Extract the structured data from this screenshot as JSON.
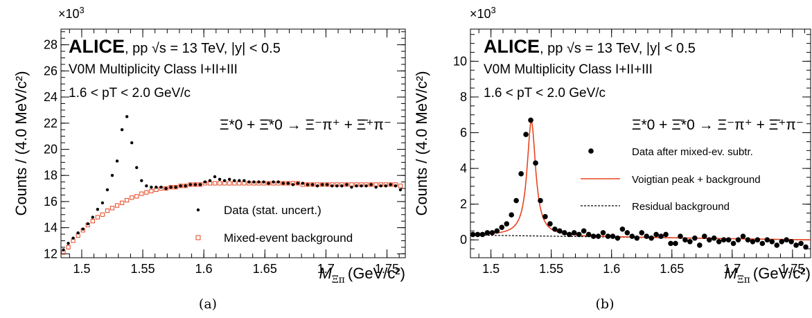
{
  "chart_data": [
    {
      "type": "scatter",
      "panel_label": "(a)",
      "y_multiplier": "×10",
      "y_multiplier_exp": "3",
      "ylabel": "Counts / (4.0 MeV/c²)",
      "xlabel": "M",
      "xlabel_sub": "Ξπ",
      "xlabel_unit": "(GeV/c²)",
      "experiment": "ALICE",
      "header_rest": ", pp √s = 13 TeV, |y| < 0.5",
      "line2": "V0M Multiplicity Class I+II+III",
      "line3": "1.6 < pT < 2.0 GeV/c",
      "decay": "Ξ*0 + Ξ̄*0 → Ξ⁻π⁺ + Ξ̄⁺π⁻",
      "xlim": [
        1.483,
        1.765
      ],
      "ylim": [
        11.7,
        29.2
      ],
      "xticks": [
        "1.5",
        "1.55",
        "1.6",
        "1.65",
        "1.7",
        "1.75"
      ],
      "yticks": [
        "12",
        "14",
        "16",
        "18",
        "20",
        "22",
        "24",
        "26",
        "28"
      ],
      "legend": [
        "Data (stat. uncert.)",
        "Mixed-event background"
      ],
      "colors": {
        "data": "#000000",
        "mixed": "#e8431e"
      },
      "x": [
        1.485,
        1.489,
        1.493,
        1.497,
        1.501,
        1.505,
        1.509,
        1.513,
        1.517,
        1.521,
        1.525,
        1.529,
        1.533,
        1.537,
        1.541,
        1.545,
        1.549,
        1.553,
        1.557,
        1.561,
        1.565,
        1.569,
        1.573,
        1.577,
        1.581,
        1.585,
        1.589,
        1.593,
        1.597,
        1.601,
        1.605,
        1.609,
        1.613,
        1.617,
        1.621,
        1.625,
        1.629,
        1.633,
        1.637,
        1.641,
        1.645,
        1.649,
        1.653,
        1.657,
        1.661,
        1.665,
        1.669,
        1.673,
        1.677,
        1.681,
        1.685,
        1.689,
        1.693,
        1.697,
        1.701,
        1.705,
        1.709,
        1.713,
        1.717,
        1.721,
        1.725,
        1.729,
        1.733,
        1.737,
        1.741,
        1.745,
        1.749,
        1.753,
        1.757,
        1.761
      ],
      "series": [
        {
          "name": "Data (stat. uncert.)",
          "values": [
            12.3,
            12.8,
            13.2,
            13.6,
            13.9,
            14.3,
            14.8,
            15.4,
            15.9,
            16.9,
            18.0,
            19.1,
            21.5,
            22.5,
            20.5,
            18.6,
            17.6,
            17.2,
            17.1,
            17.1,
            17.1,
            17.0,
            17.1,
            17.1,
            17.2,
            17.2,
            17.3,
            17.3,
            17.3,
            17.5,
            17.6,
            17.9,
            17.7,
            17.6,
            17.7,
            17.6,
            17.6,
            17.6,
            17.5,
            17.5,
            17.5,
            17.5,
            17.4,
            17.5,
            17.5,
            17.4,
            17.4,
            17.3,
            17.4,
            17.4,
            17.3,
            17.3,
            17.2,
            17.3,
            17.3,
            17.2,
            17.2,
            17.2,
            17.3,
            17.1,
            17.2,
            17.2,
            17.2,
            17.3,
            17.1,
            17.2,
            17.2,
            17.3,
            17.2,
            16.9
          ]
        },
        {
          "name": "Mixed-event background",
          "values": [
            12.1,
            12.5,
            13.0,
            13.4,
            13.8,
            14.2,
            14.5,
            14.8,
            15.0,
            15.3,
            15.5,
            15.7,
            15.9,
            16.1,
            16.3,
            16.4,
            16.6,
            16.7,
            16.8,
            16.9,
            17.0,
            17.0,
            17.1,
            17.1,
            17.2,
            17.2,
            17.3,
            17.3,
            17.3,
            17.4,
            17.4,
            17.4,
            17.4,
            17.4,
            17.4,
            17.4,
            17.4,
            17.4,
            17.4,
            17.4,
            17.4,
            17.4,
            17.4,
            17.4,
            17.4,
            17.4,
            17.4,
            17.4,
            17.4,
            17.3,
            17.3,
            17.3,
            17.3,
            17.3,
            17.3,
            17.3,
            17.3,
            17.3,
            17.3,
            17.3,
            17.3,
            17.3,
            17.3,
            17.3,
            17.3,
            17.3,
            17.3,
            17.3,
            17.3,
            17.2
          ]
        }
      ]
    },
    {
      "type": "scatter",
      "panel_label": "(b)",
      "y_multiplier": "×10",
      "y_multiplier_exp": "3",
      "ylabel": "Counts / (4.0 MeV/c²)",
      "xlabel": "M",
      "xlabel_sub": "Ξπ",
      "xlabel_unit": "(GeV/c²)",
      "experiment": "ALICE",
      "header_rest": ", pp √s = 13 TeV, |y| < 0.5",
      "line2": "V0M Multiplicity Class I+II+III",
      "line3": "1.6 < pT < 2.0 GeV/c",
      "decay": "Ξ*0 + Ξ̄*0 → Ξ⁻π⁺ + Ξ̄⁺π⁻",
      "xlim": [
        1.483,
        1.765
      ],
      "ylim": [
        -1.0,
        11.8
      ],
      "xticks": [
        "1.5",
        "1.55",
        "1.6",
        "1.65",
        "1.7",
        "1.75"
      ],
      "yticks": [
        "0",
        "2",
        "4",
        "6",
        "8",
        "10"
      ],
      "legend": [
        "Data after mixed-ev. subtr.",
        "Voigtian peak + background",
        "Residual background"
      ],
      "colors": {
        "data": "#000000",
        "fit": "#e8431e",
        "residual": "#000000"
      },
      "x": [
        1.485,
        1.489,
        1.493,
        1.497,
        1.501,
        1.505,
        1.509,
        1.513,
        1.517,
        1.521,
        1.525,
        1.529,
        1.533,
        1.537,
        1.541,
        1.545,
        1.549,
        1.553,
        1.557,
        1.561,
        1.565,
        1.569,
        1.573,
        1.577,
        1.581,
        1.585,
        1.589,
        1.593,
        1.597,
        1.601,
        1.605,
        1.609,
        1.613,
        1.617,
        1.621,
        1.625,
        1.629,
        1.633,
        1.637,
        1.641,
        1.645,
        1.649,
        1.653,
        1.657,
        1.661,
        1.665,
        1.669,
        1.673,
        1.677,
        1.681,
        1.685,
        1.689,
        1.693,
        1.697,
        1.701,
        1.705,
        1.709,
        1.713,
        1.717,
        1.721,
        1.725,
        1.729,
        1.733,
        1.737,
        1.741,
        1.745,
        1.749,
        1.753,
        1.757,
        1.761
      ],
      "series": [
        {
          "name": "Data after mixed-ev. subtr.",
          "values": [
            0.3,
            0.3,
            0.3,
            0.4,
            0.4,
            0.5,
            0.7,
            0.9,
            1.4,
            2.2,
            3.7,
            5.9,
            6.7,
            4.3,
            2.2,
            1.3,
            0.9,
            0.6,
            0.5,
            0.4,
            0.3,
            0.4,
            0.3,
            0.5,
            0.3,
            0.2,
            0.2,
            0.4,
            0.2,
            0.2,
            0.1,
            0.6,
            0.4,
            0.2,
            0.1,
            0.4,
            0.2,
            0.1,
            0.3,
            0.2,
            0.3,
            -0.2,
            -0.2,
            0.2,
            0.0,
            -0.1,
            0.1,
            -0.3,
            0.2,
            0.0,
            0.1,
            -0.1,
            0.0,
            0.0,
            -0.2,
            0.0,
            0.2,
            0.0,
            -0.1,
            0.0,
            -0.2,
            0.0,
            -0.1,
            -0.3,
            -0.1,
            0.0,
            -0.1,
            -0.3,
            -0.2,
            -0.4
          ]
        }
      ],
      "fit_peak": {
        "mass": 1.5335,
        "width": 0.0085,
        "amplitude": 6.45
      },
      "residual_background": {
        "start": 0.27,
        "end": 0.0
      }
    }
  ]
}
